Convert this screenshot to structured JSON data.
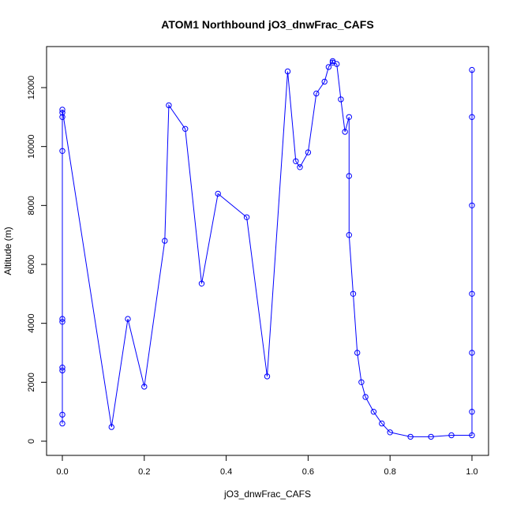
{
  "chart_data": {
    "type": "line",
    "title": "ATOM1 Northbound jO3_dnwFrac_CAFS",
    "xlabel": "jO3_dnwFrac_CAFS",
    "ylabel": "Altitude (m)",
    "xlim": [
      0.0,
      1.0
    ],
    "ylim": [
      0,
      12500
    ],
    "x_ticks": [
      0.0,
      0.2,
      0.4,
      0.6,
      0.8,
      1.0
    ],
    "x_tick_labels": [
      "0.0",
      "0.2",
      "0.4",
      "0.6",
      "0.8",
      "1.0"
    ],
    "y_ticks": [
      0,
      2000,
      4000,
      6000,
      8000,
      10000,
      12000
    ],
    "y_tick_labels": [
      "0",
      "2000",
      "4000",
      "6000",
      "8000",
      "10000",
      "12000"
    ],
    "grid": false,
    "marker": "open-circle",
    "colors": {
      "series": "#0000ff",
      "axis": "#000000",
      "background": "#ffffff"
    },
    "series": [
      {
        "marker": "open-circle",
        "x": [
          0.0,
          0.0,
          0.0,
          0.0,
          0.0,
          0.0,
          0.0,
          0.0,
          0.0,
          0.0,
          0.12,
          0.16,
          0.2,
          0.25,
          0.26,
          0.3,
          0.34,
          0.38,
          0.45,
          0.5,
          0.55,
          0.57,
          0.58,
          0.6,
          0.62,
          0.64,
          0.65,
          0.66,
          0.66,
          0.67,
          0.68,
          0.69,
          0.7,
          0.7,
          0.7,
          0.71,
          0.72,
          0.73,
          0.74,
          0.76,
          0.78,
          0.8,
          0.85,
          0.9,
          0.95,
          1.0,
          1.0,
          1.0,
          1.0,
          1.0,
          1.0,
          1.0
        ],
        "y": [
          600,
          900,
          2400,
          2500,
          4050,
          4150,
          9850,
          11000,
          11150,
          11250,
          480,
          4150,
          1850,
          6800,
          11400,
          10600,
          5350,
          8400,
          7600,
          2200,
          12550,
          9500,
          9300,
          9800,
          11800,
          12200,
          12700,
          12900,
          12850,
          12800,
          11600,
          10500,
          11000,
          9000,
          7000,
          5000,
          3000,
          2000,
          1500,
          1000,
          600,
          300,
          150,
          150,
          200,
          200,
          1000,
          3000,
          5000,
          8000,
          11000,
          12600
        ]
      }
    ]
  }
}
